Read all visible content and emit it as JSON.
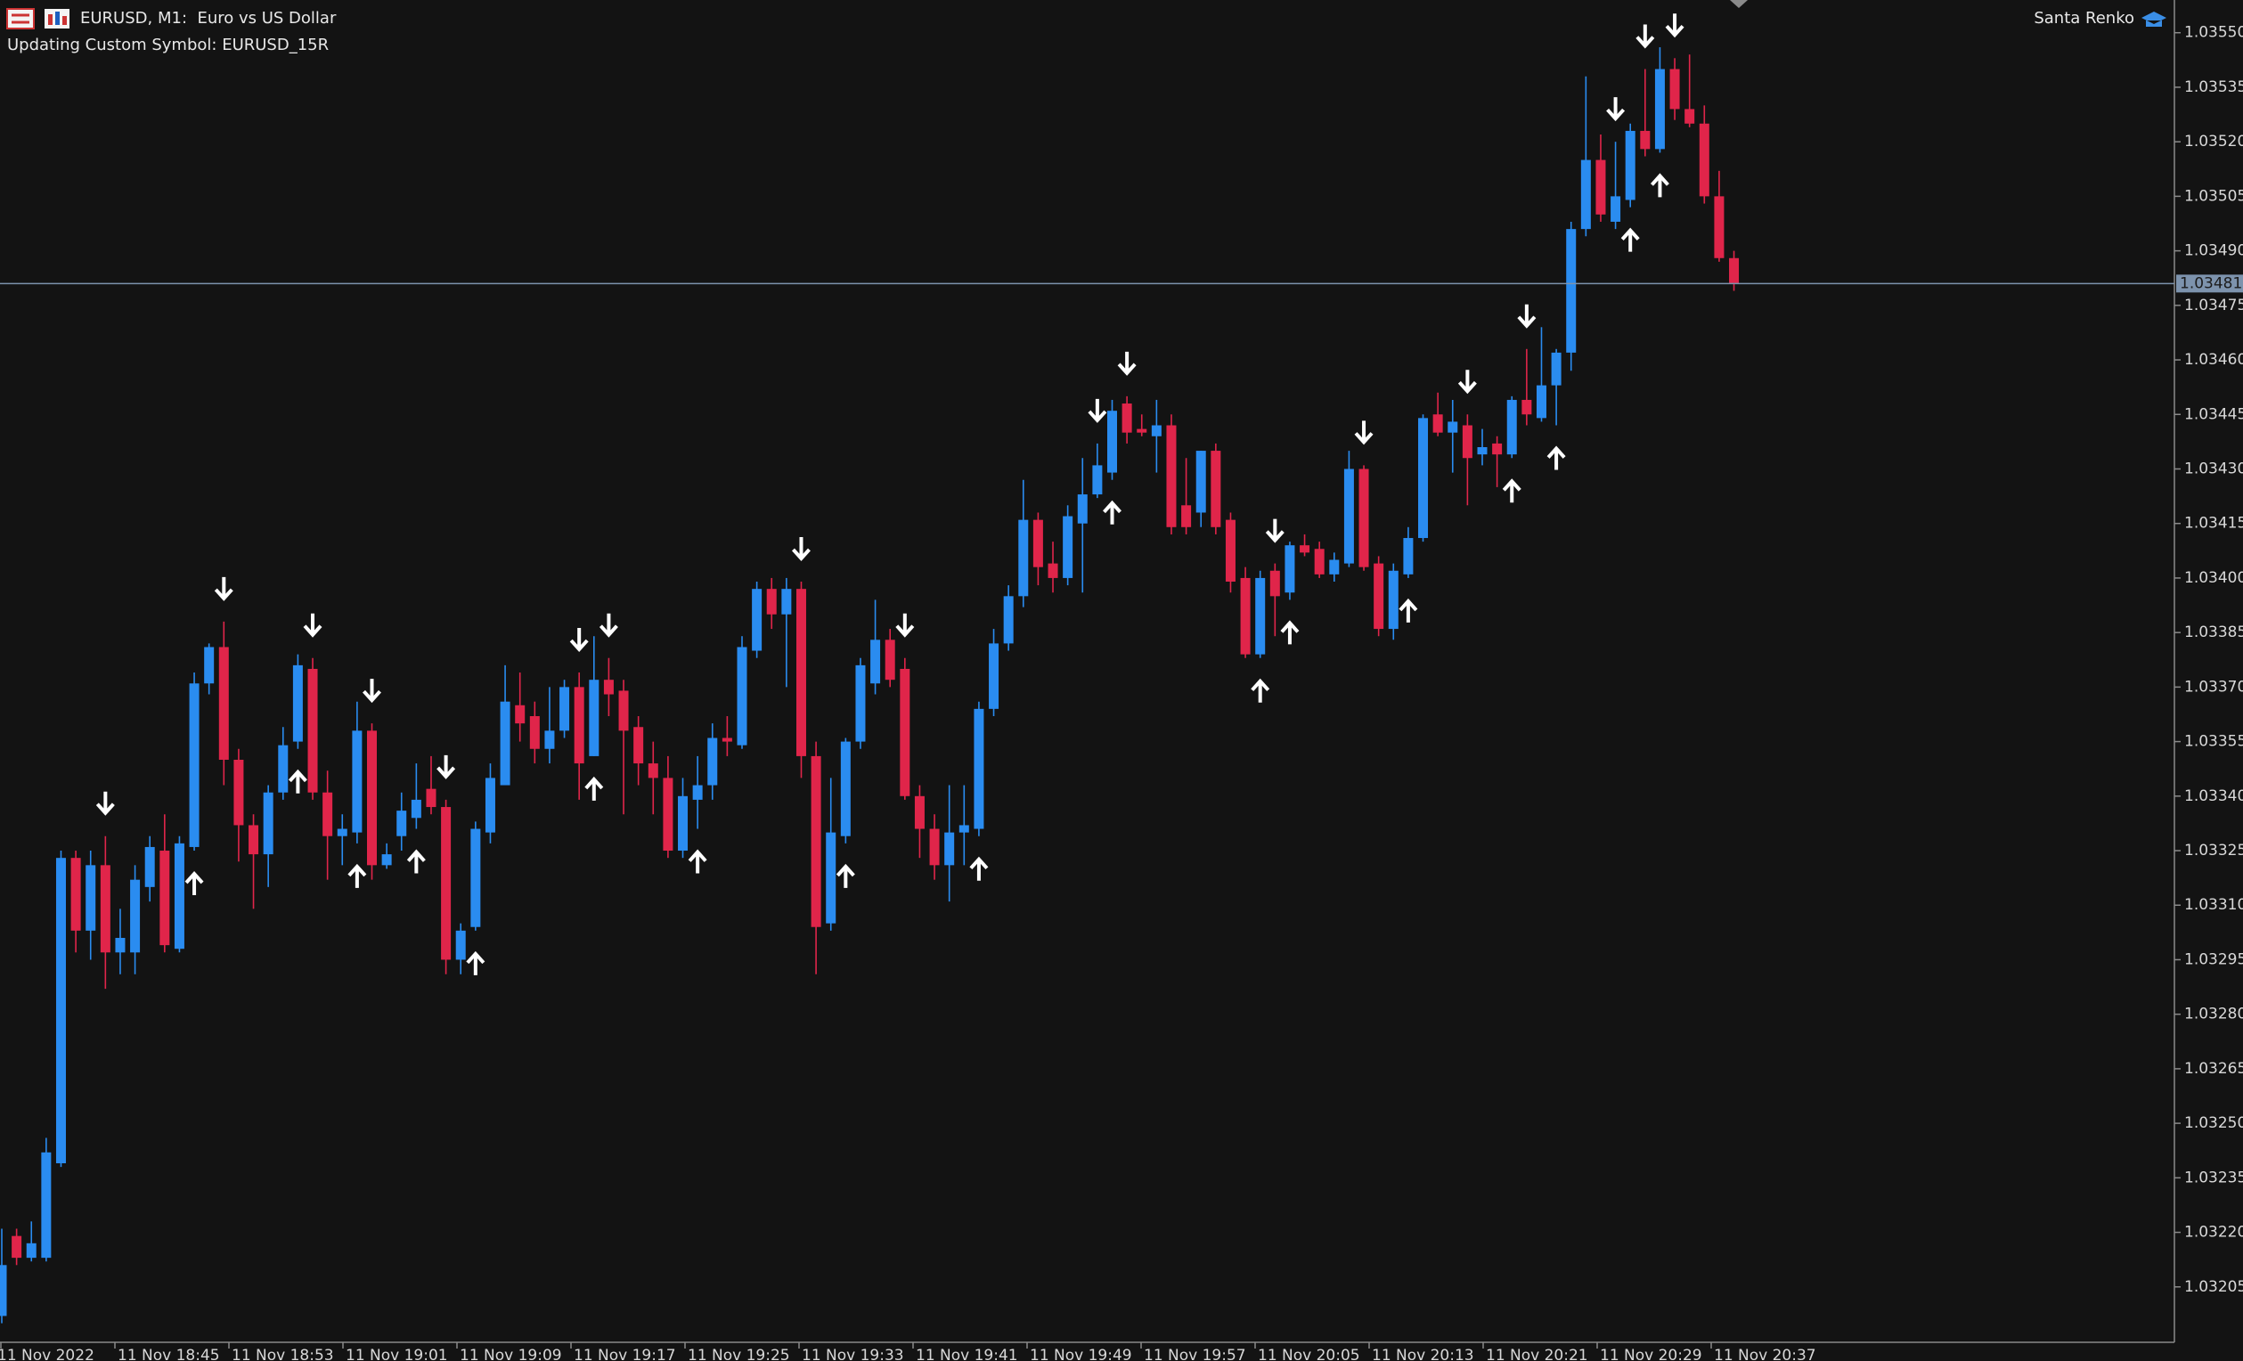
{
  "header": {
    "symbol_line": "EURUSD, M1:  Euro vs US Dollar",
    "status_line": "Updating Custom Symbol: EURUSD_15R",
    "indicator": "Santa Renko"
  },
  "chart_data": {
    "type": "candlestick",
    "up_color": "#2a8cf0",
    "down_color": "#e0254a",
    "arrow_color": "#ffffff",
    "price_line_color": "#7d93ad",
    "open": [
      1.03197,
      1.03219,
      1.03213,
      1.03213,
      1.03239,
      1.03323,
      1.03303,
      1.03321,
      1.03297,
      1.03297,
      1.03315,
      1.03325,
      1.03298,
      1.03326,
      1.03371,
      1.03381,
      1.0335,
      1.03332,
      1.03324,
      1.03341,
      1.03355,
      1.03375,
      1.03341,
      1.03329,
      1.0333,
      1.03358,
      1.03321,
      1.03329,
      1.03334,
      1.03342,
      1.03337,
      1.03295,
      1.03304,
      1.0333,
      1.03343,
      1.03365,
      1.03362,
      1.03353,
      1.03358,
      1.0337,
      1.03351,
      1.03372,
      1.03369,
      1.03359,
      1.03349,
      1.03345,
      1.03325,
      1.03339,
      1.03343,
      1.03356,
      1.03354,
      1.0338,
      1.03397,
      1.0339,
      1.03397,
      1.03351,
      1.03305,
      1.03329,
      1.03355,
      1.03371,
      1.03383,
      1.03375,
      1.0334,
      1.03331,
      1.03321,
      1.0333,
      1.03331,
      1.03364,
      1.03382,
      1.03395,
      1.03416,
      1.03404,
      1.034,
      1.03415,
      1.03423,
      1.03429,
      1.03448,
      1.03441,
      1.03439,
      1.03442,
      1.0342,
      1.03418,
      1.03435,
      1.03416,
      1.034,
      1.03379,
      1.03402,
      1.03396,
      1.03409,
      1.03408,
      1.03401,
      1.03404,
      1.0343,
      1.03404,
      1.03386,
      1.03401,
      1.03411,
      1.03445,
      1.0344,
      1.03442,
      1.03434,
      1.03437,
      1.03434,
      1.03449,
      1.03444,
      1.03453,
      1.03462,
      1.03496,
      1.03515,
      1.03498,
      1.03504,
      1.03523,
      1.03518,
      1.0354,
      1.03529,
      1.03525,
      1.03505,
      1.03488
    ],
    "high": [
      1.03221,
      1.03221,
      1.03223,
      1.03246,
      1.03325,
      1.03325,
      1.03325,
      1.03329,
      1.03309,
      1.03321,
      1.03329,
      1.03335,
      1.03329,
      1.03374,
      1.03382,
      1.03388,
      1.03353,
      1.03335,
      1.03343,
      1.03359,
      1.03379,
      1.03378,
      1.03347,
      1.03335,
      1.03366,
      1.0336,
      1.03327,
      1.03341,
      1.03349,
      1.03351,
      1.03339,
      1.03305,
      1.03333,
      1.03349,
      1.03376,
      1.03374,
      1.03366,
      1.0337,
      1.03372,
      1.03374,
      1.03384,
      1.03378,
      1.03372,
      1.03362,
      1.03355,
      1.03351,
      1.03345,
      1.03351,
      1.0336,
      1.03362,
      1.03384,
      1.03399,
      1.034,
      1.034,
      1.03399,
      1.03355,
      1.03345,
      1.03356,
      1.03378,
      1.03394,
      1.03386,
      1.03378,
      1.03343,
      1.03335,
      1.03343,
      1.03343,
      1.03366,
      1.03386,
      1.03398,
      1.03427,
      1.03418,
      1.0341,
      1.0342,
      1.03433,
      1.03437,
      1.03449,
      1.0345,
      1.03445,
      1.03449,
      1.03445,
      1.03433,
      1.03435,
      1.03437,
      1.03418,
      1.03403,
      1.03402,
      1.03404,
      1.0341,
      1.03412,
      1.0341,
      1.03407,
      1.03435,
      1.03431,
      1.03406,
      1.03404,
      1.03414,
      1.03445,
      1.03451,
      1.03449,
      1.03445,
      1.03441,
      1.03439,
      1.0345,
      1.03463,
      1.03469,
      1.03463,
      1.03498,
      1.03538,
      1.03522,
      1.0352,
      1.03525,
      1.0354,
      1.03546,
      1.03543,
      1.03544,
      1.0353,
      1.03512,
      1.0349
    ],
    "low": [
      1.03195,
      1.03211,
      1.03212,
      1.03212,
      1.03238,
      1.03297,
      1.03295,
      1.03287,
      1.03291,
      1.03291,
      1.03311,
      1.03297,
      1.03297,
      1.03325,
      1.03368,
      1.03343,
      1.03322,
      1.03309,
      1.03315,
      1.03339,
      1.03353,
      1.03339,
      1.03317,
      1.03321,
      1.03327,
      1.03317,
      1.0332,
      1.03325,
      1.03331,
      1.03335,
      1.03291,
      1.03291,
      1.03303,
      1.03327,
      1.03343,
      1.03355,
      1.03349,
      1.03349,
      1.03356,
      1.03339,
      1.03351,
      1.03362,
      1.03335,
      1.03343,
      1.03335,
      1.03323,
      1.03323,
      1.03331,
      1.03339,
      1.03351,
      1.03353,
      1.03378,
      1.03386,
      1.0337,
      1.03345,
      1.03291,
      1.03303,
      1.03327,
      1.03353,
      1.03368,
      1.0337,
      1.03339,
      1.03323,
      1.03317,
      1.03311,
      1.03321,
      1.03329,
      1.03362,
      1.0338,
      1.03392,
      1.03398,
      1.03396,
      1.03398,
      1.03396,
      1.03422,
      1.03427,
      1.03437,
      1.03439,
      1.03429,
      1.03412,
      1.03412,
      1.03414,
      1.03412,
      1.03396,
      1.03378,
      1.03378,
      1.03384,
      1.03394,
      1.03406,
      1.034,
      1.03399,
      1.03403,
      1.03402,
      1.03384,
      1.03383,
      1.034,
      1.0341,
      1.03439,
      1.03429,
      1.0342,
      1.03431,
      1.03425,
      1.03433,
      1.03442,
      1.03443,
      1.03442,
      1.03457,
      1.03494,
      1.03498,
      1.03496,
      1.03502,
      1.03516,
      1.03517,
      1.03526,
      1.03524,
      1.03503,
      1.03487,
      1.03479
    ],
    "close": [
      1.03211,
      1.03213,
      1.03217,
      1.03242,
      1.03323,
      1.03303,
      1.03321,
      1.03297,
      1.03301,
      1.03317,
      1.03326,
      1.03299,
      1.03327,
      1.03371,
      1.03381,
      1.0335,
      1.03332,
      1.03324,
      1.03341,
      1.03354,
      1.03376,
      1.03341,
      1.03329,
      1.03331,
      1.03358,
      1.03321,
      1.03324,
      1.03336,
      1.03339,
      1.03337,
      1.03295,
      1.03303,
      1.03331,
      1.03345,
      1.03366,
      1.0336,
      1.03353,
      1.03358,
      1.0337,
      1.03349,
      1.03372,
      1.03368,
      1.03358,
      1.03349,
      1.03345,
      1.03325,
      1.0334,
      1.03343,
      1.03356,
      1.03355,
      1.03381,
      1.03397,
      1.0339,
      1.03397,
      1.03351,
      1.03304,
      1.0333,
      1.03355,
      1.03376,
      1.03383,
      1.03372,
      1.0334,
      1.03331,
      1.03321,
      1.0333,
      1.03332,
      1.03364,
      1.03382,
      1.03395,
      1.03416,
      1.03403,
      1.034,
      1.03417,
      1.03423,
      1.03431,
      1.03446,
      1.0344,
      1.0344,
      1.03442,
      1.03414,
      1.03414,
      1.03435,
      1.03414,
      1.03399,
      1.03379,
      1.034,
      1.03395,
      1.03409,
      1.03407,
      1.03401,
      1.03405,
      1.0343,
      1.03403,
      1.03386,
      1.03402,
      1.03411,
      1.03444,
      1.0344,
      1.03443,
      1.03433,
      1.03436,
      1.03434,
      1.03449,
      1.03445,
      1.03453,
      1.03462,
      1.03496,
      1.03515,
      1.035,
      1.03505,
      1.03523,
      1.03518,
      1.0354,
      1.03529,
      1.03525,
      1.03505,
      1.03488,
      1.03481
    ],
    "down_arrows": [
      7,
      15,
      21,
      25,
      30,
      39,
      41,
      54,
      61,
      74,
      76,
      86,
      92,
      99,
      103,
      109,
      111,
      113
    ],
    "up_arrows": [
      13,
      20,
      24,
      28,
      32,
      40,
      47,
      57,
      66,
      75,
      85,
      87,
      95,
      102,
      105,
      110,
      112
    ],
    "current_price": 1.03481,
    "ylim": [
      1.0319,
      1.03559
    ],
    "yticks": [
      {
        "value": 1.0355,
        "label": "1.03550"
      },
      1.03535,
      {
        "value": 1.0352,
        "label": "1.03520"
      },
      1.03505,
      {
        "value": 1.0349,
        "label": "1.03490"
      },
      1.03475,
      {
        "value": 1.0346,
        "label": "1.03460"
      },
      1.03445,
      {
        "value": 1.0343,
        "label": "1.03430"
      },
      1.03415,
      {
        "value": 1.034,
        "label": "1.03400"
      },
      1.03385,
      {
        "value": 1.0337,
        "label": "1.03370"
      },
      1.03355,
      {
        "value": 1.0334,
        "label": "1.03340"
      },
      1.03325,
      {
        "value": 1.0331,
        "label": "1.03310"
      },
      1.03295,
      {
        "value": 1.0328,
        "label": "1.03280"
      },
      1.03265,
      {
        "value": 1.0325,
        "label": "1.03250"
      },
      1.03235,
      {
        "value": 1.0322,
        "label": "1.03220"
      },
      1.03205
    ],
    "time_labels": [
      "11 Nov 2022",
      "11 Nov 18:45",
      "11 Nov 18:53",
      "11 Nov 19:01",
      "11 Nov 19:09",
      "11 Nov 19:17",
      "11 Nov 19:25",
      "11 Nov 19:33",
      "11 Nov 19:41",
      "11 Nov 19:49",
      "11 Nov 19:57",
      "11 Nov 20:05",
      "11 Nov 20:13",
      "11 Nov 20:21",
      "11 Nov 20:29",
      "11 Nov 20:37"
    ]
  }
}
